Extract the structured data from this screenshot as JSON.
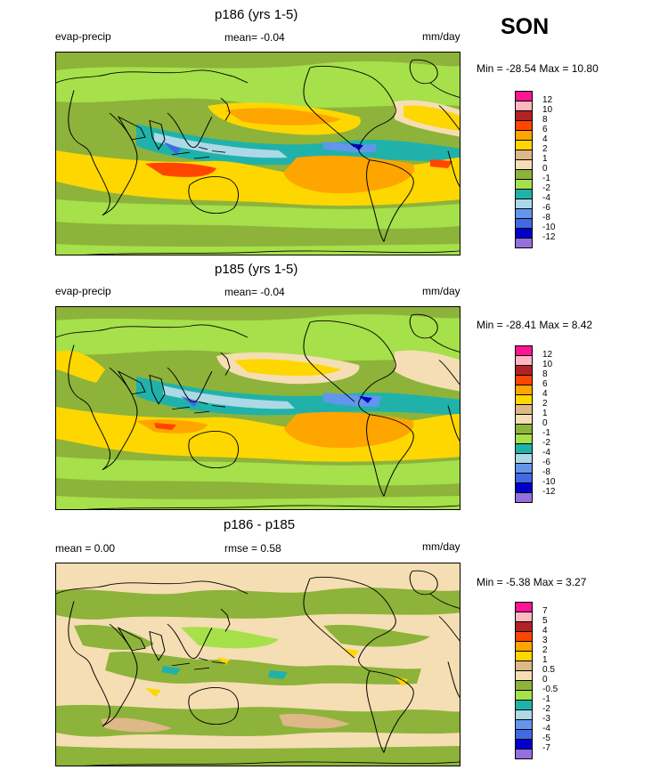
{
  "season": "SON",
  "colors": {
    "pink": "#ff1493",
    "lightpink": "#ffb6c1",
    "darkred": "#b22222",
    "red": "#ff4500",
    "orange": "#ffa500",
    "gold": "#ffd700",
    "tan": "#deb887",
    "cream": "#f5deb3",
    "olive": "#8db33a",
    "lime": "#a6e04a",
    "teal": "#20b2aa",
    "paleblue": "#add8e6",
    "blue": "#6495ed",
    "royal": "#4169e1",
    "navy": "#0000cd",
    "purple": "#9370db"
  },
  "panels": [
    {
      "title": "p186 (yrs 1-5)",
      "left_label": "evap-precip",
      "center_label": "mean=  -0.04",
      "units": "mm/day",
      "minmax": "Min = -28.54 Max =  10.80",
      "scale": [
        "12",
        "10",
        "8",
        "6",
        "4",
        "2",
        "1",
        "0",
        "-1",
        "-2",
        "-4",
        "-6",
        "-8",
        "-10",
        "-12"
      ]
    },
    {
      "title": "p185 (yrs 1-5)",
      "left_label": "evap-precip",
      "center_label": "mean=  -0.04",
      "units": "mm/day",
      "minmax": "Min = -28.41 Max =   8.42",
      "scale": [
        "12",
        "10",
        "8",
        "6",
        "4",
        "2",
        "1",
        "0",
        "-1",
        "-2",
        "-4",
        "-6",
        "-8",
        "-10",
        "-12"
      ]
    },
    {
      "title": "p186 - p185",
      "left_label": "mean =   0.00",
      "center_label": "rmse =   0.58",
      "units": "mm/day",
      "minmax": "Min =  -5.38 Max =   3.27",
      "scale": [
        "7",
        "5",
        "4",
        "3",
        "2",
        "1",
        "0.5",
        "0",
        "-0.5",
        "-1",
        "-2",
        "-3",
        "-4",
        "-5",
        "-7"
      ]
    }
  ]
}
